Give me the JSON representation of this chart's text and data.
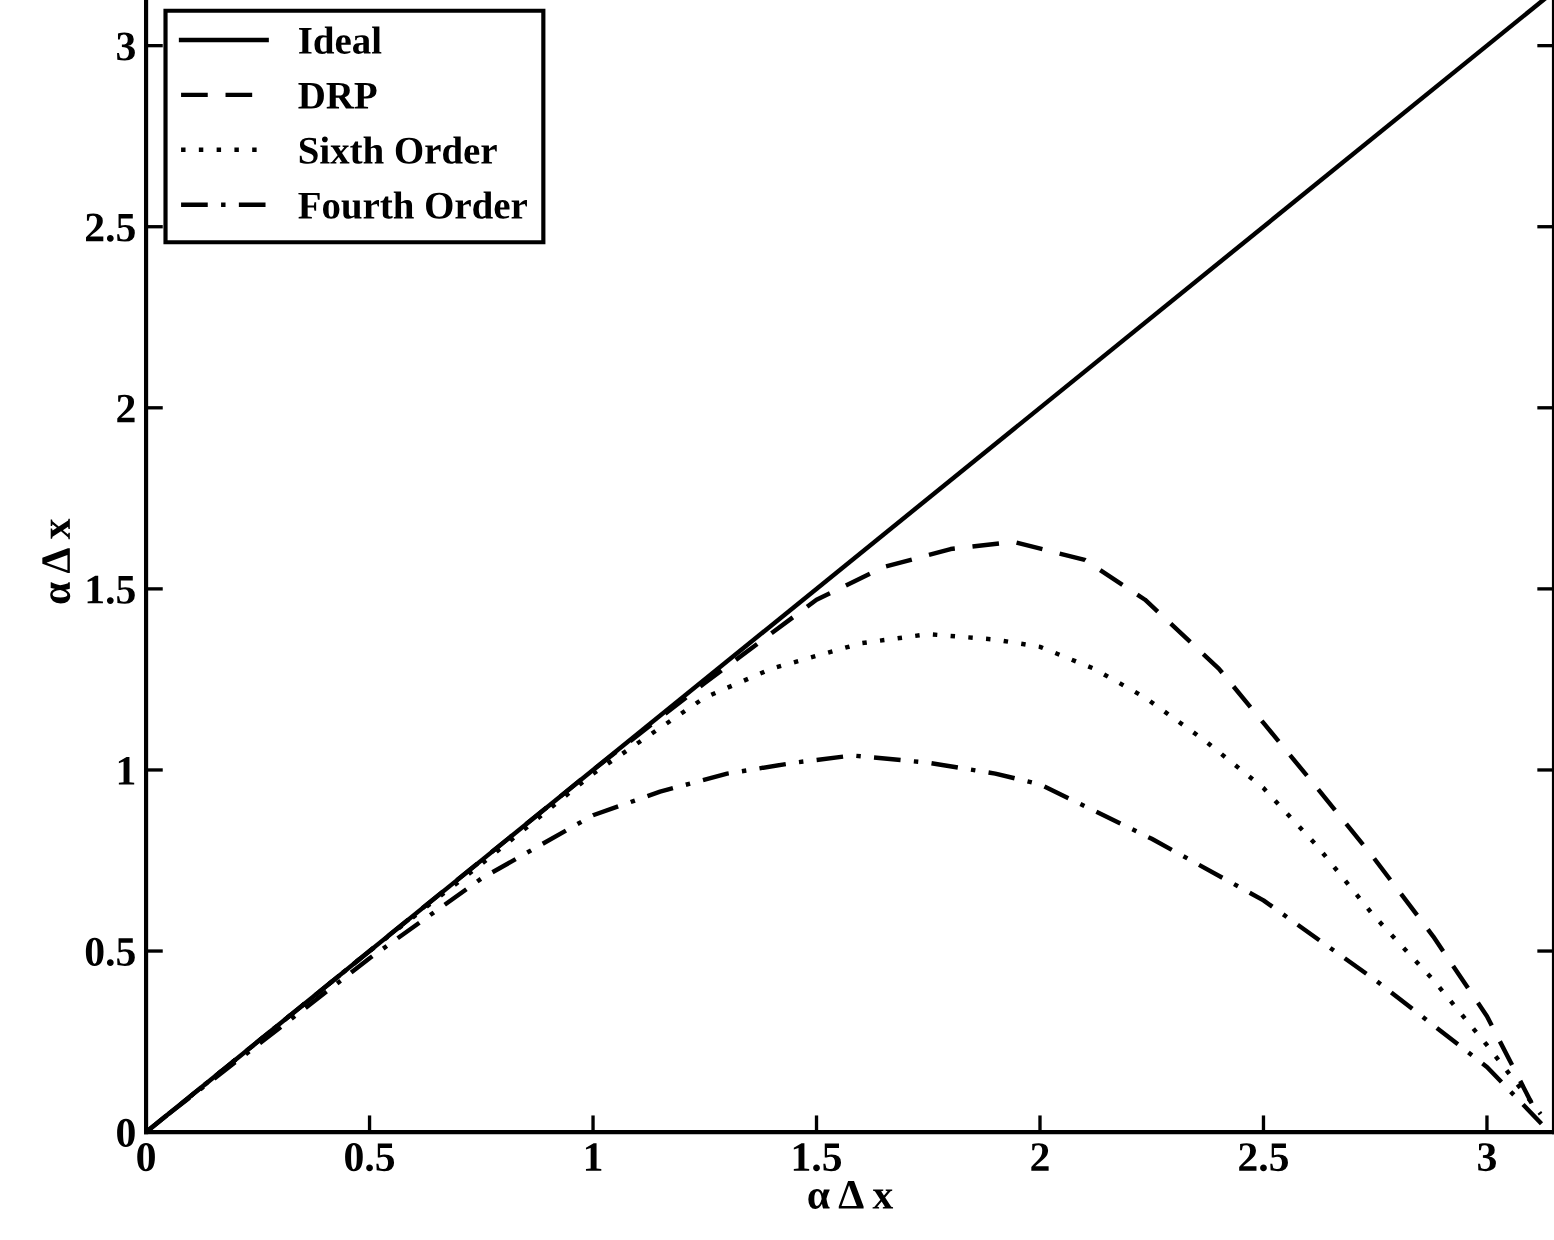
{
  "chart_data": {
    "type": "line",
    "xlabel": "α Δ x",
    "ylabel": "α Δ x",
    "xlim": [
      0,
      3.15
    ],
    "ylim": [
      0,
      3.15
    ],
    "xticks": [
      0,
      0.5,
      1,
      1.5,
      2,
      2.5,
      3
    ],
    "yticks": [
      0,
      0.5,
      1,
      1.5,
      2,
      2.5,
      3
    ],
    "legend": "top left",
    "grid": false,
    "series": [
      {
        "name": "Ideal",
        "color": "#000000",
        "line_style": "solid",
        "x": [
          0,
          3.14
        ],
        "values": [
          0,
          3.14
        ]
      },
      {
        "name": "DRP",
        "color": "#000000",
        "line_style": "dashed",
        "x": [
          0,
          0.5,
          1.0,
          1.25,
          1.5,
          1.65,
          1.8,
          1.94,
          2.1,
          2.235,
          2.4,
          2.5,
          2.62,
          2.745,
          2.88,
          3.0,
          3.1
        ],
        "values": [
          0,
          0.5,
          1.0,
          1.24,
          1.47,
          1.56,
          1.61,
          1.63,
          1.58,
          1.47,
          1.28,
          1.13,
          0.95,
          0.76,
          0.54,
          0.32,
          0.08
        ]
      },
      {
        "name": "Sixth Order",
        "color": "#000000",
        "line_style": "dotted",
        "x": [
          0.1,
          0.5,
          0.75,
          1.0,
          1.25,
          1.4,
          1.6,
          1.75,
          1.9,
          2.0,
          2.12,
          2.235,
          2.37,
          2.5,
          2.62,
          2.745,
          2.88,
          3.0,
          3.12
        ],
        "values": [
          0.1,
          0.5,
          0.74,
          0.99,
          1.2,
          1.28,
          1.35,
          1.375,
          1.36,
          1.34,
          1.28,
          1.2,
          1.08,
          0.95,
          0.79,
          0.6,
          0.42,
          0.24,
          0.05
        ]
      },
      {
        "name": "Fourth Order",
        "color": "#000000",
        "line_style": "dashdot",
        "x": [
          0.05,
          0.5,
          0.75,
          1.0,
          1.15,
          1.3,
          1.45,
          1.58,
          1.75,
          1.9,
          2.0,
          2.25,
          2.5,
          2.75,
          3.0,
          3.14
        ],
        "values": [
          0.05,
          0.48,
          0.7,
          0.875,
          0.94,
          0.99,
          1.02,
          1.04,
          1.02,
          0.99,
          0.96,
          0.81,
          0.64,
          0.42,
          0.18,
          0
        ]
      }
    ]
  }
}
